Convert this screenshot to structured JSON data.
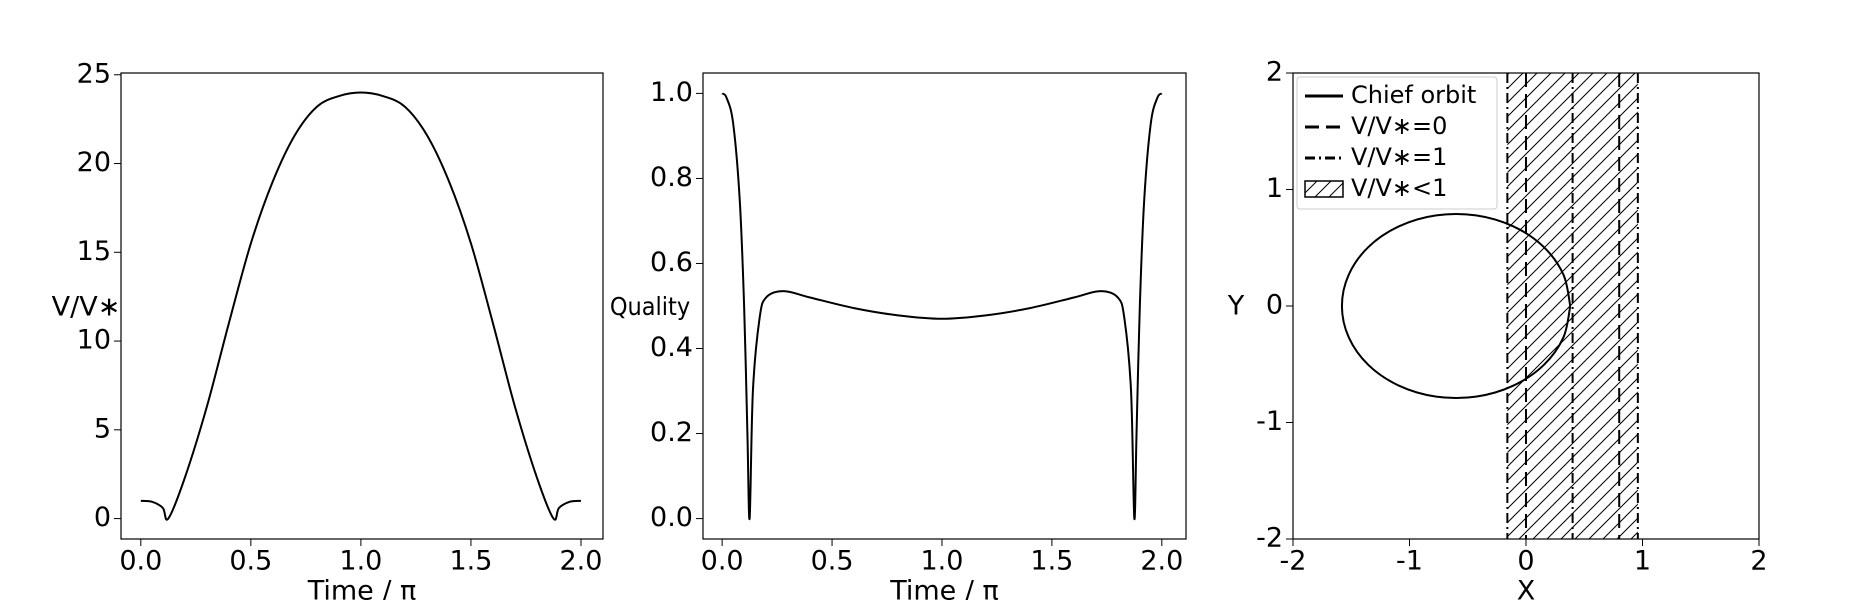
{
  "chart_data": [
    {
      "type": "line",
      "xlabel": "Time / π",
      "ylabel": "V/V∗",
      "xlim": [
        -0.09,
        2.1
      ],
      "ylim": [
        -1.15,
        25.1
      ],
      "xticks": [
        {
          "value": 0,
          "label": "0.0"
        },
        0.5,
        {
          "value": 1,
          "label": "1.0"
        },
        1.5,
        {
          "value": 2,
          "label": "2.0"
        }
      ],
      "yticks": [
        0,
        5,
        10,
        15,
        20,
        25
      ],
      "series": [
        {
          "color": "#000000",
          "x": [
            0,
            0.05,
            0.1,
            0.125,
            0.2,
            0.3,
            0.4,
            0.5,
            0.6,
            0.7,
            0.8,
            0.9,
            1.0,
            1.1,
            1.2,
            1.3,
            1.4,
            1.5,
            1.6,
            1.7,
            1.8,
            1.875,
            1.9,
            1.95,
            2.0
          ],
          "values": [
            1,
            0.95,
            0.6,
            0,
            2.3,
            6.3,
            11,
            15.5,
            19,
            21.6,
            23.2,
            23.8,
            24,
            23.8,
            23.2,
            21.6,
            19,
            15.5,
            11,
            6.3,
            2.3,
            0,
            0.6,
            0.95,
            1
          ]
        }
      ]
    },
    {
      "type": "line",
      "xlabel": "Time / π",
      "ylabel": "Quality",
      "xlim": [
        -0.087,
        2.11
      ],
      "ylim": [
        -0.048,
        1.048
      ],
      "xticks": [
        {
          "value": 0,
          "label": "0.0"
        },
        0.5,
        {
          "value": 1,
          "label": "1.0"
        },
        1.5,
        {
          "value": 2,
          "label": "2.0"
        }
      ],
      "yticks": [
        {
          "value": 0,
          "label": "0.0"
        },
        0.2,
        0.4,
        0.6,
        0.8,
        {
          "value": 1,
          "label": "1.0"
        }
      ],
      "series": [
        {
          "color": "#000000",
          "x": [
            0,
            0.02,
            0.05,
            0.08,
            0.1,
            0.115,
            0.125,
            0.14,
            0.17,
            0.2,
            0.28,
            0.4,
            0.6,
            0.8,
            1.0,
            1.2,
            1.4,
            1.6,
            1.72,
            1.8,
            1.83,
            1.86,
            1.875,
            1.885,
            1.9,
            1.92,
            1.95,
            1.98,
            2.0
          ],
          "values": [
            1.0,
            0.99,
            0.93,
            0.75,
            0.5,
            0.2,
            0,
            0.3,
            0.47,
            0.52,
            0.535,
            0.52,
            0.495,
            0.478,
            0.47,
            0.478,
            0.495,
            0.52,
            0.535,
            0.52,
            0.47,
            0.3,
            0,
            0.2,
            0.5,
            0.75,
            0.93,
            0.99,
            1.0
          ]
        }
      ]
    },
    {
      "type": "line",
      "xlabel": "X",
      "ylabel": "Y",
      "xlim": [
        -2,
        2
      ],
      "ylim": [
        -2,
        2
      ],
      "xticks": [
        -2,
        -1,
        0,
        1,
        2
      ],
      "yticks": [
        -2,
        -1,
        0,
        1,
        2
      ],
      "legend": "upper left",
      "series": [
        {
          "name": "Chief orbit",
          "color": "#000000",
          "x": [
            0.38,
            0.321,
            0.151,
            -0.11,
            -0.429,
            -0.771,
            -1.09,
            -1.351,
            -1.521,
            -1.58,
            -1.521,
            -1.351,
            -1.09,
            -0.771,
            -0.429,
            -0.11,
            0.151,
            0.321,
            0.38
          ],
          "values": [
            0,
            0.27,
            0.508,
            0.684,
            0.778,
            0.778,
            0.684,
            0.508,
            0.27,
            0,
            -0.27,
            -0.508,
            -0.684,
            -0.778,
            -0.778,
            -0.684,
            -0.508,
            -0.27,
            0
          ]
        }
      ],
      "vlines": [
        {
          "name": "V/V∗=0",
          "style": "dashed",
          "color": "#000000",
          "x": [
            0,
            0.8
          ]
        },
        {
          "name": "V/V∗=1",
          "style": "dashdot",
          "color": "#000000",
          "x": [
            -0.16,
            0.4,
            0.96
          ]
        }
      ],
      "region": {
        "name": "V/V∗<1",
        "hatch": "////",
        "x": [
          -0.16,
          0.96
        ]
      }
    }
  ]
}
